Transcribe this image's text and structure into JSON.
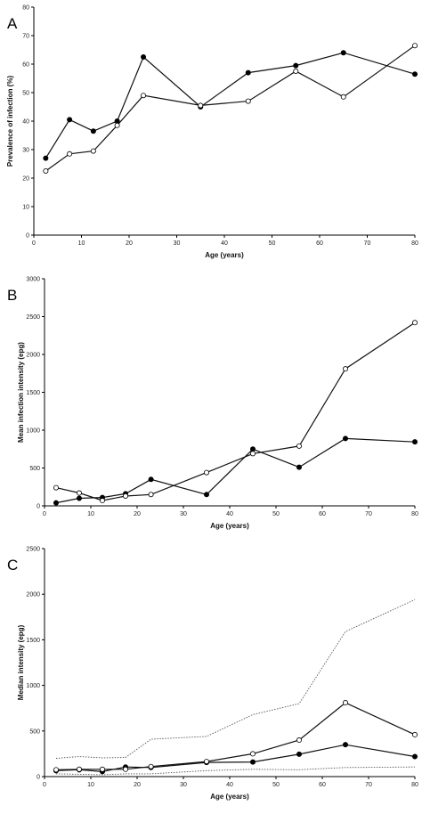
{
  "chart_data": [
    {
      "type": "line",
      "panel_label": "A",
      "xlabel": "Age (years)",
      "ylabel": "Prevalence of infection (%)",
      "xlim": [
        0,
        80
      ],
      "ylim": [
        0,
        80
      ],
      "xticks": [
        0,
        10,
        20,
        30,
        40,
        50,
        60,
        70,
        80
      ],
      "yticks": [
        0,
        10,
        20,
        30,
        40,
        50,
        60,
        70,
        80
      ],
      "grid": false,
      "series": [
        {
          "marker": "filled",
          "style": "solid",
          "x": [
            2.5,
            7.5,
            12.5,
            17.5,
            23,
            35,
            45,
            55,
            65,
            80
          ],
          "y": [
            27,
            40.5,
            36.5,
            40,
            62.5,
            45,
            57,
            59.5,
            64,
            56.5
          ]
        },
        {
          "marker": "open",
          "style": "solid",
          "x": [
            2.5,
            7.5,
            12.5,
            17.5,
            23,
            35,
            45,
            55,
            65,
            80
          ],
          "y": [
            22.5,
            28.5,
            29.5,
            38.5,
            49,
            45.5,
            47,
            57.5,
            48.5,
            66.5
          ]
        }
      ]
    },
    {
      "type": "line",
      "panel_label": "B",
      "xlabel": "Age (years)",
      "ylabel": "Mean infection intensity (epg)",
      "xlim": [
        0,
        80
      ],
      "ylim": [
        0,
        3000
      ],
      "xticks": [
        0,
        10,
        20,
        30,
        40,
        50,
        60,
        70,
        80
      ],
      "yticks": [
        0,
        500,
        1000,
        1500,
        2000,
        2500,
        3000
      ],
      "grid": false,
      "series": [
        {
          "marker": "filled",
          "style": "solid",
          "x": [
            2.5,
            7.5,
            12.5,
            17.5,
            23,
            35,
            45,
            55,
            65,
            80
          ],
          "y": [
            40,
            100,
            110,
            160,
            350,
            150,
            750,
            510,
            890,
            845
          ]
        },
        {
          "marker": "open",
          "style": "solid",
          "x": [
            2.5,
            7.5,
            12.5,
            17.5,
            23,
            35,
            45,
            55,
            65,
            80
          ],
          "y": [
            240,
            170,
            70,
            130,
            150,
            440,
            690,
            790,
            1810,
            2420
          ]
        }
      ]
    },
    {
      "type": "line",
      "panel_label": "C",
      "xlabel": "Age (years)",
      "ylabel": "Median intensity (epg)",
      "xlim": [
        0,
        80
      ],
      "ylim": [
        0,
        2500
      ],
      "xticks": [
        0,
        10,
        20,
        30,
        40,
        50,
        60,
        70,
        80
      ],
      "yticks": [
        0,
        500,
        1000,
        1500,
        2000,
        2500
      ],
      "grid": false,
      "series": [
        {
          "marker": "filled",
          "style": "solid",
          "x": [
            2.5,
            7.5,
            12.5,
            17.5,
            23,
            35,
            45,
            55,
            65,
            80
          ],
          "y": [
            65,
            75,
            55,
            105,
            100,
            155,
            160,
            245,
            350,
            220
          ]
        },
        {
          "marker": "open",
          "style": "solid",
          "x": [
            2.5,
            7.5,
            12.5,
            17.5,
            23,
            35,
            45,
            55,
            65,
            80
          ],
          "y": [
            75,
            80,
            80,
            80,
            110,
            165,
            250,
            400,
            810,
            460
          ]
        },
        {
          "marker": "none",
          "style": "dotted",
          "x": [
            2.5,
            7.5,
            12.5,
            17.5,
            23,
            35,
            45,
            55,
            65,
            80
          ],
          "y": [
            200,
            220,
            205,
            210,
            410,
            440,
            680,
            800,
            1590,
            1940
          ]
        },
        {
          "marker": "none",
          "style": "dotted",
          "x": [
            2.5,
            7.5,
            12.5,
            17.5,
            23,
            35,
            45,
            55,
            65,
            80
          ],
          "y": [
            30,
            25,
            20,
            30,
            30,
            65,
            80,
            75,
            100,
            105
          ]
        }
      ]
    }
  ]
}
